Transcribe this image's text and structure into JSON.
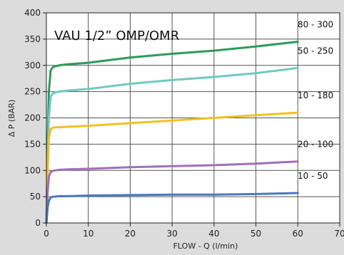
{
  "chart_data": {
    "type": "line",
    "title": "VAU 1/2” OMP/OMR",
    "xlabel": "FLOW - Q (l/min)",
    "ylabel": "Δ P (BAR)",
    "xlim": [
      0,
      70
    ],
    "ylim": [
      0,
      400
    ],
    "xticks": [
      0,
      10,
      20,
      30,
      40,
      50,
      60,
      70
    ],
    "yticks": [
      0,
      50,
      100,
      150,
      200,
      250,
      300,
      350,
      400
    ],
    "grid": true,
    "series": [
      {
        "name": "80 - 300",
        "color": "#2e9a5c",
        "x": [
          0,
          0.3,
          0.6,
          1,
          1.5,
          2,
          3,
          5,
          10,
          20,
          30,
          40,
          50,
          60
        ],
        "y": [
          0,
          150,
          250,
          290,
          296,
          298,
          300,
          302,
          305,
          315,
          322,
          328,
          336,
          345
        ]
      },
      {
        "name": "50 - 250",
        "color": "#6fcac0",
        "x": [
          0,
          0.3,
          0.6,
          1,
          1.5,
          2,
          3,
          5,
          10,
          20,
          30,
          40,
          50,
          60
        ],
        "y": [
          0,
          120,
          200,
          240,
          246,
          248,
          250,
          252,
          255,
          265,
          272,
          278,
          285,
          295
        ]
      },
      {
        "name": "10 - 180",
        "color": "#f2c020",
        "x": [
          0,
          0.3,
          0.6,
          1,
          1.5,
          2,
          3,
          5,
          10,
          20,
          30,
          40,
          50,
          60
        ],
        "y": [
          0,
          100,
          160,
          178,
          181,
          182,
          182,
          183,
          185,
          190,
          195,
          200,
          205,
          210
        ]
      },
      {
        "name": "20 - 100",
        "color": "#a070b8",
        "x": [
          0,
          0.3,
          0.6,
          1,
          1.5,
          2,
          3,
          5,
          10,
          20,
          30,
          40,
          50,
          60
        ],
        "y": [
          0,
          60,
          88,
          97,
          99,
          100,
          101,
          102,
          103,
          106,
          108,
          110,
          113,
          117
        ]
      },
      {
        "name": "10 - 50",
        "color": "#4a78c0",
        "x": [
          0,
          0.3,
          0.6,
          1,
          1.5,
          2,
          3,
          5,
          10,
          20,
          30,
          40,
          50,
          60
        ],
        "y": [
          0,
          30,
          42,
          48,
          50,
          50,
          51,
          51,
          52,
          53,
          54,
          54,
          55,
          57
        ]
      }
    ]
  }
}
